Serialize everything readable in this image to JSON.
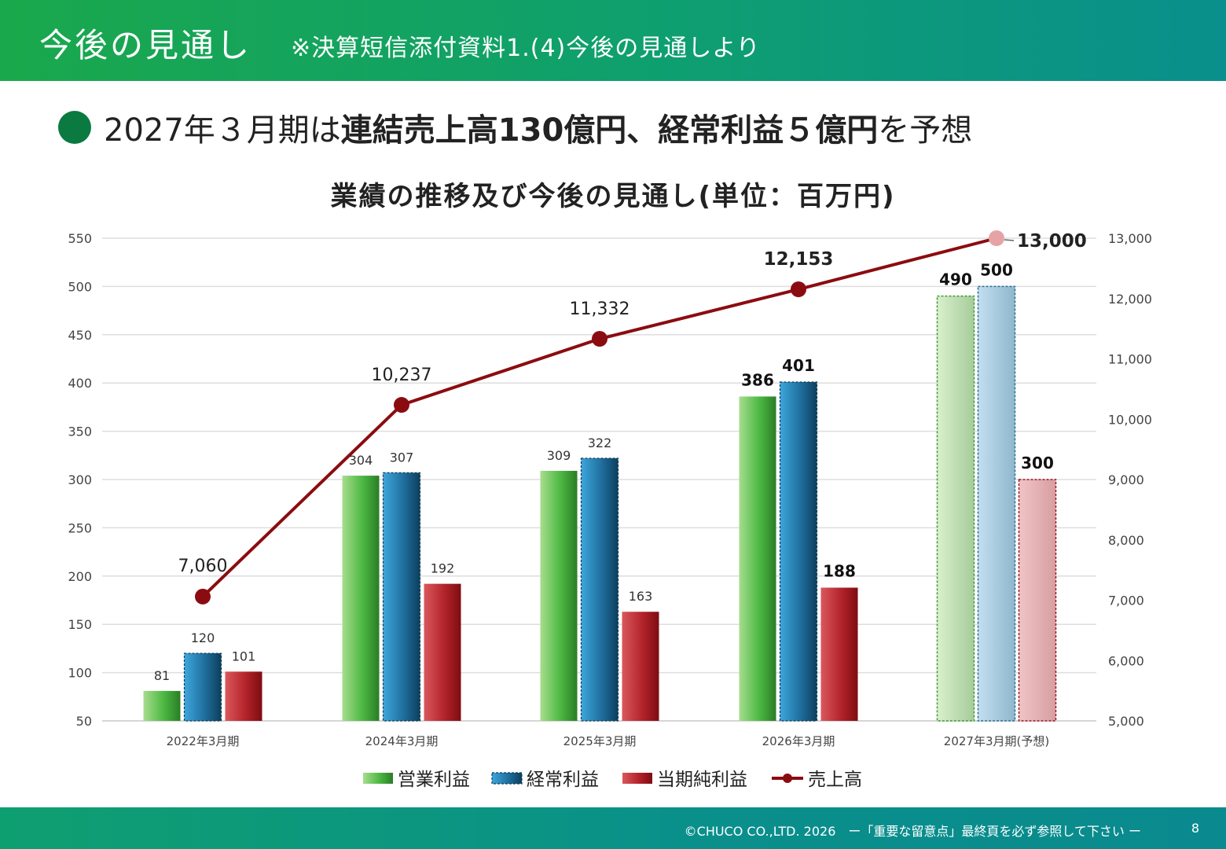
{
  "header": {
    "title": "今後の見通し",
    "subtitle": "※決算短信添付資料1.(4)今後の見通しより",
    "colors": {
      "start": "#1aa84c",
      "end": "#0a8f8c"
    }
  },
  "headline": {
    "parts": [
      "2027年３月期は",
      "連結売上高130億円、経常利益５億円",
      "を予想"
    ]
  },
  "chart_data": {
    "type": "bar",
    "title": "業績の推移及び今後の見通し(単位：百万円)",
    "categories": [
      "2022年3月期",
      "2024年3月期",
      "2025年3月期",
      "2026年3月期",
      "2027年3月期(予想)"
    ],
    "series": [
      {
        "name": "営業利益",
        "type": "bar",
        "axis": "left",
        "values": [
          81,
          304,
          309,
          386,
          490
        ],
        "color": "#4cb842"
      },
      {
        "name": "経常利益",
        "type": "bar",
        "axis": "left",
        "values": [
          120,
          307,
          322,
          401,
          500
        ],
        "color": "#1f6f9e"
      },
      {
        "name": "当期純利益",
        "type": "bar",
        "axis": "left",
        "values": [
          101,
          192,
          163,
          188,
          300
        ],
        "color": "#b3232a"
      },
      {
        "name": "売上高",
        "type": "line",
        "axis": "right",
        "values": [
          7060,
          10237,
          11332,
          12153,
          13000
        ],
        "color": "#8b0c10"
      }
    ],
    "value_labels": {
      "営業利益": [
        "81",
        "304",
        "309",
        "386",
        "490"
      ],
      "経常利益": [
        "120",
        "307",
        "322",
        "401",
        "500"
      ],
      "当期純利益": [
        "101",
        "192",
        "163",
        "188",
        "300"
      ],
      "売上高": [
        "7,060",
        "10,237",
        "11,332",
        "12,153",
        "13,000"
      ]
    },
    "forecast_index": 4,
    "y_left": {
      "min": 50,
      "max": 550,
      "ticks": [
        "550",
        "500",
        "450",
        "400",
        "350",
        "300",
        "250",
        "200",
        "150",
        "100",
        "50"
      ]
    },
    "y_right": {
      "min": 5000,
      "max": 13000,
      "ticks": [
        "13,000",
        "12,000",
        "11,000",
        "10,000",
        "9,000",
        "8,000",
        "7,000",
        "6,000",
        "5,000"
      ]
    },
    "grid": true,
    "legend_position": "bottom"
  },
  "footer": {
    "text": "©CHUCO CO.,LTD. 2026　ー「重要な留意点」最終頁を必ず参照して下さい ー",
    "page": "8"
  }
}
